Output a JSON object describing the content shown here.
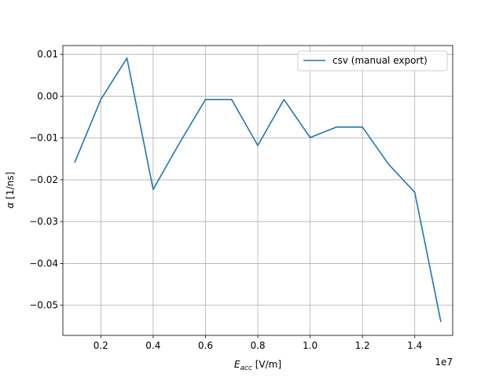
{
  "chart_data": {
    "type": "line",
    "title": "",
    "xlabel_main": "E",
    "xlabel_sub": "acc",
    "xlabel_unit": " [V/m]",
    "ylabel_symbol": "α",
    "ylabel_unit": " [1/ns]",
    "x_multiplier_label": "1e7",
    "x_scale": 10000000,
    "xlim": [
      550000,
      15450000
    ],
    "ylim": [
      -0.0572,
      0.0121
    ],
    "x_ticks": [
      2000000,
      4000000,
      6000000,
      8000000,
      10000000,
      12000000,
      14000000
    ],
    "x_tick_labels": [
      "0.2",
      "0.4",
      "0.6",
      "0.8",
      "1.0",
      "1.2",
      "1.4"
    ],
    "y_ticks": [
      0.01,
      0.0,
      -0.01,
      -0.02,
      -0.03,
      -0.04,
      -0.05
    ],
    "y_tick_labels": [
      "0.01",
      "0.00",
      "−0.01",
      "−0.02",
      "−0.03",
      "−0.04",
      "−0.05"
    ],
    "grid": true,
    "legend_position": "top-right",
    "series": [
      {
        "name": "csv (manual export)",
        "color": "#1f77b4",
        "x": [
          1000000,
          2000000,
          3000000,
          4000000,
          5000000,
          6000000,
          7000000,
          8000000,
          9000000,
          10000000,
          11000000,
          12000000,
          13000000,
          14000000,
          15000000
        ],
        "y": [
          -0.0159,
          -0.0008,
          0.0091,
          -0.0223,
          -0.0113,
          -0.0008,
          -0.0008,
          -0.0118,
          -0.0008,
          -0.0099,
          -0.0074,
          -0.0074,
          -0.0163,
          -0.023,
          -0.054
        ]
      }
    ]
  }
}
